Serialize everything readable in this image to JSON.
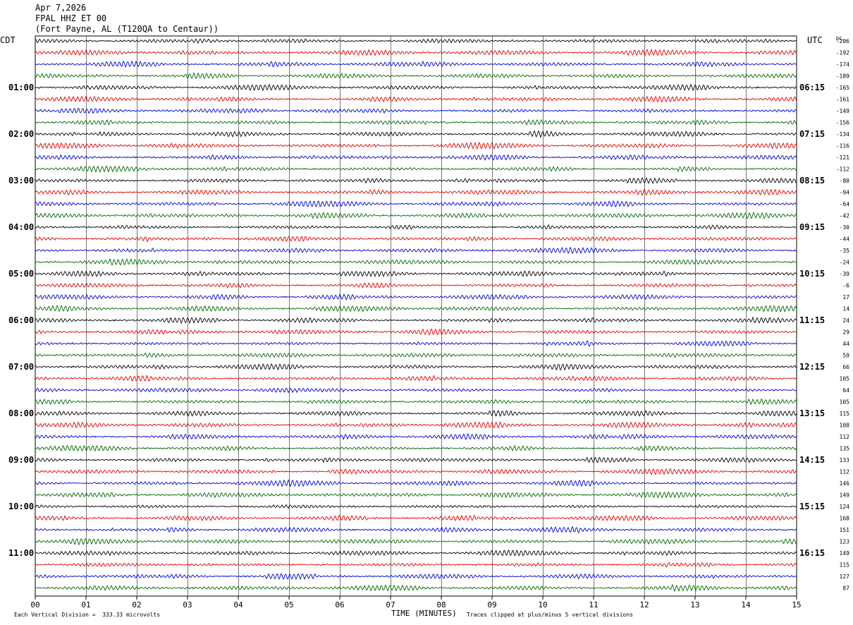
{
  "header": {
    "date": "Apr 7,2026",
    "station": "FPAL HHZ ET 00",
    "location": "(Fort Payne, AL (T120QA to Centaur))"
  },
  "left_axis_label": "CDT",
  "right_axis_label": "UTC",
  "dc_label": "DC",
  "footer": {
    "scale_note": "Each Vertical Division =  333.33 microvolts",
    "x_title": "TIME (MINUTES)",
    "clip_note": "Traces clipped at plus/minus 5 vertical divisions"
  },
  "chart_data": {
    "type": "line",
    "x_ticks": [
      "00",
      "01",
      "02",
      "03",
      "04",
      "05",
      "06",
      "07",
      "08",
      "09",
      "10",
      "11",
      "12",
      "13",
      "14",
      "15"
    ],
    "xlim": [
      0,
      15
    ],
    "rows": 48,
    "minutes_per_row": 15,
    "row_colors": [
      "#000000",
      "#dd0000",
      "#0000cc",
      "#006600"
    ],
    "left_time_labels": [
      "01:00",
      "02:00",
      "03:00",
      "04:00",
      "05:00",
      "06:00",
      "07:00",
      "08:00",
      "09:00",
      "10:00",
      "11:00"
    ],
    "right_time_labels": [
      "06:15",
      "07:15",
      "08:15",
      "09:15",
      "10:15",
      "11:15",
      "12:15",
      "13:15",
      "14:15",
      "15:15",
      "16:15"
    ],
    "dc_offsets": [
      "-206",
      "-192",
      "-174",
      "-189",
      "-165",
      "-161",
      "-149",
      "-156",
      "-134",
      "-116",
      "-121",
      "-112",
      "-80",
      "-94",
      "-64",
      "-42",
      "-30",
      "-44",
      "-35",
      "-24",
      "-39",
      "-6",
      "17",
      "14",
      "24",
      "29",
      "44",
      "59",
      "66",
      "105",
      "64",
      "105",
      "115",
      "108",
      "112",
      "135",
      "133",
      "112",
      "146",
      "149",
      "124",
      "168",
      "151",
      "123",
      "149",
      "115",
      "127",
      "87"
    ]
  }
}
